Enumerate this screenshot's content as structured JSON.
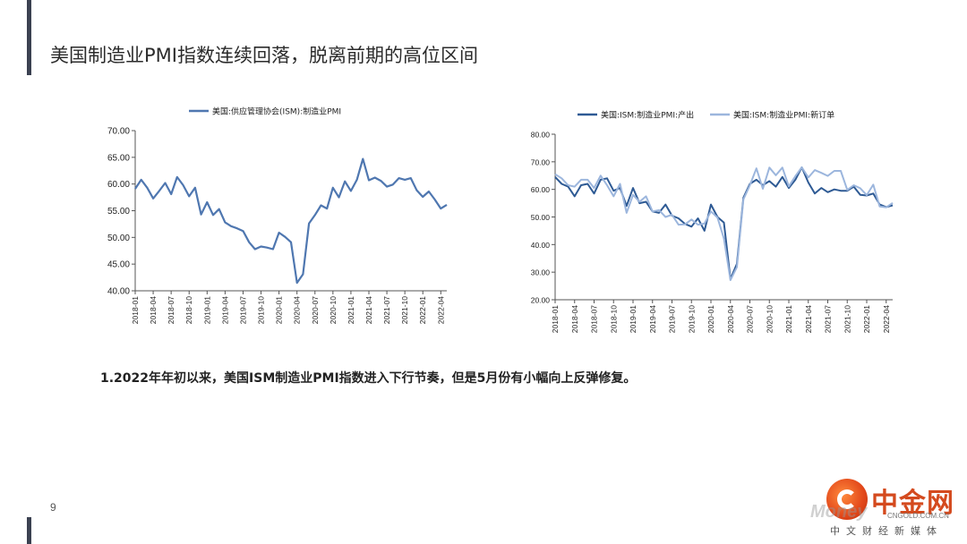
{
  "page": {
    "title": "美国制造业PMI指数连续回落，脱离前期的高位区间",
    "note": "1.2022年年初以来，美国ISM制造业PMI指数进入下行节奏，但是5月份有小幅向上反弹修复。",
    "page_number": "9"
  },
  "logo": {
    "name": "中金网",
    "site": "CNGOLD.COM.CN",
    "slogan": "中文财经新媒体",
    "watermark": "Money"
  },
  "chart_data": [
    {
      "type": "line",
      "legend": [
        "美国:供应管理协会(ISM):制造业PMI"
      ],
      "x": [
        "2018-01",
        "2018-02",
        "2018-03",
        "2018-04",
        "2018-05",
        "2018-06",
        "2018-07",
        "2018-08",
        "2018-09",
        "2018-10",
        "2018-11",
        "2018-12",
        "2019-01",
        "2019-02",
        "2019-03",
        "2019-04",
        "2019-05",
        "2019-06",
        "2019-07",
        "2019-08",
        "2019-09",
        "2019-10",
        "2019-11",
        "2019-12",
        "2020-01",
        "2020-02",
        "2020-03",
        "2020-04",
        "2020-05",
        "2020-06",
        "2020-07",
        "2020-08",
        "2020-09",
        "2020-10",
        "2020-11",
        "2020-12",
        "2021-01",
        "2021-02",
        "2021-03",
        "2021-04",
        "2021-05",
        "2021-06",
        "2021-07",
        "2021-08",
        "2021-09",
        "2021-10",
        "2021-11",
        "2021-12",
        "2022-01",
        "2022-02",
        "2022-03",
        "2022-04",
        "2022-05"
      ],
      "xticks": [
        "2018-01",
        "2018-04",
        "2018-07",
        "2018-10",
        "2019-01",
        "2019-04",
        "2019-07",
        "2019-10",
        "2020-01",
        "2020-04",
        "2020-07",
        "2020-10",
        "2021-01",
        "2021-04",
        "2021-07",
        "2021-10",
        "2022-01",
        "2022-04"
      ],
      "series": [
        {
          "name": "美国:供应管理协会(ISM):制造业PMI",
          "color": "#4f77b0",
          "values": [
            59.1,
            60.8,
            59.3,
            57.3,
            58.7,
            60.2,
            58.1,
            61.3,
            59.8,
            57.7,
            59.3,
            54.3,
            56.6,
            54.2,
            55.3,
            52.8,
            52.1,
            51.7,
            51.2,
            49.1,
            47.8,
            48.3,
            48.1,
            47.8,
            50.9,
            50.1,
            49.1,
            41.5,
            43.1,
            52.6,
            54.2,
            56.0,
            55.4,
            59.3,
            57.5,
            60.5,
            58.7,
            60.8,
            64.7,
            60.7,
            61.2,
            60.6,
            59.5,
            59.9,
            61.1,
            60.8,
            61.1,
            58.8,
            57.6,
            58.6,
            57.1,
            55.4,
            56.1
          ]
        }
      ],
      "ylim": [
        40,
        70
      ],
      "yticks": [
        "40.00",
        "45.00",
        "50.00",
        "55.00",
        "60.00",
        "65.00",
        "70.00"
      ]
    },
    {
      "type": "line",
      "legend": [
        "美国:ISM:制造业PMI:产出",
        "美国:ISM:制造业PMI:新订单"
      ],
      "x": [
        "2018-01",
        "2018-02",
        "2018-03",
        "2018-04",
        "2018-05",
        "2018-06",
        "2018-07",
        "2018-08",
        "2018-09",
        "2018-10",
        "2018-11",
        "2018-12",
        "2019-01",
        "2019-02",
        "2019-03",
        "2019-04",
        "2019-05",
        "2019-06",
        "2019-07",
        "2019-08",
        "2019-09",
        "2019-10",
        "2019-11",
        "2019-12",
        "2020-01",
        "2020-02",
        "2020-03",
        "2020-04",
        "2020-05",
        "2020-06",
        "2020-07",
        "2020-08",
        "2020-09",
        "2020-10",
        "2020-11",
        "2020-12",
        "2021-01",
        "2021-02",
        "2021-03",
        "2021-04",
        "2021-05",
        "2021-06",
        "2021-07",
        "2021-08",
        "2021-09",
        "2021-10",
        "2021-11",
        "2021-12",
        "2022-01",
        "2022-02",
        "2022-03",
        "2022-04",
        "2022-05"
      ],
      "xticks": [
        "2018-01",
        "2018-04",
        "2018-07",
        "2018-10",
        "2019-01",
        "2019-04",
        "2019-07",
        "2019-10",
        "2020-01",
        "2020-04",
        "2020-07",
        "2020-10",
        "2021-01",
        "2021-04",
        "2021-07",
        "2021-10",
        "2022-01",
        "2022-04"
      ],
      "series": [
        {
          "name": "美国:ISM:制造业PMI:产出",
          "color": "#2e5a94",
          "values": [
            64.5,
            62.0,
            61.0,
            57.5,
            61.5,
            62.0,
            58.5,
            63.5,
            64.0,
            59.5,
            60.5,
            54.0,
            60.5,
            55.0,
            55.5,
            52.0,
            51.5,
            54.5,
            50.5,
            49.5,
            47.5,
            46.5,
            49.5,
            45.0,
            54.5,
            50.0,
            48.0,
            27.5,
            33.0,
            57.0,
            62.0,
            63.5,
            61.5,
            63.0,
            61.0,
            64.5,
            60.5,
            63.5,
            68.0,
            62.5,
            58.5,
            60.5,
            59.0,
            60.0,
            59.5,
            59.5,
            61.0,
            58.0,
            57.8,
            58.5,
            54.5,
            53.6,
            54.2
          ]
        },
        {
          "name": "美国:ISM:制造业PMI:新订单",
          "color": "#9cb6dd",
          "values": [
            65.5,
            64.0,
            61.5,
            61.0,
            63.5,
            63.5,
            60.5,
            65.0,
            61.5,
            57.5,
            62.0,
            51.5,
            58.0,
            55.5,
            57.5,
            52.0,
            52.5,
            50.0,
            50.8,
            47.2,
            47.3,
            49.1,
            47.2,
            47.6,
            52.0,
            49.8,
            42.2,
            27.1,
            31.8,
            56.4,
            61.5,
            67.6,
            60.2,
            67.9,
            65.1,
            67.9,
            61.1,
            64.8,
            68.0,
            64.3,
            67.0,
            66.0,
            64.9,
            66.7,
            66.7,
            59.8,
            61.5,
            60.4,
            57.9,
            61.7,
            53.8,
            53.5,
            55.1
          ]
        }
      ],
      "ylim": [
        20,
        80
      ],
      "yticks": [
        "20.00",
        "30.00",
        "40.00",
        "50.00",
        "60.00",
        "70.00",
        "80.00"
      ]
    }
  ]
}
